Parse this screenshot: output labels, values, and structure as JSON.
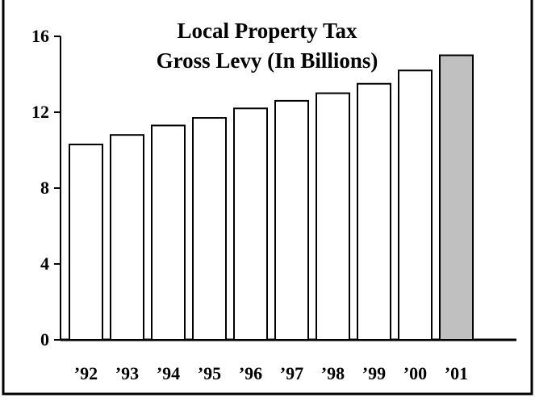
{
  "chart_data": {
    "type": "bar",
    "title": "Local Property Tax",
    "subtitle": "Gross Levy (In Billions)",
    "xlabel": "",
    "ylabel": "",
    "categories": [
      "’92",
      "’93",
      "’94",
      "’95",
      "’96",
      "’97",
      "’98",
      "’99",
      "’00",
      "’01"
    ],
    "values": [
      10.3,
      10.8,
      11.3,
      11.7,
      12.2,
      12.6,
      13.0,
      13.5,
      14.2,
      15.0
    ],
    "bar_colors": [
      "#ffffff",
      "#ffffff",
      "#ffffff",
      "#ffffff",
      "#ffffff",
      "#ffffff",
      "#ffffff",
      "#ffffff",
      "#ffffff",
      "#c0c0c0"
    ],
    "yticks": [
      "0",
      "4",
      "8",
      "12",
      "16"
    ],
    "ylim": [
      0,
      16
    ],
    "grid": false,
    "legend": "none"
  }
}
